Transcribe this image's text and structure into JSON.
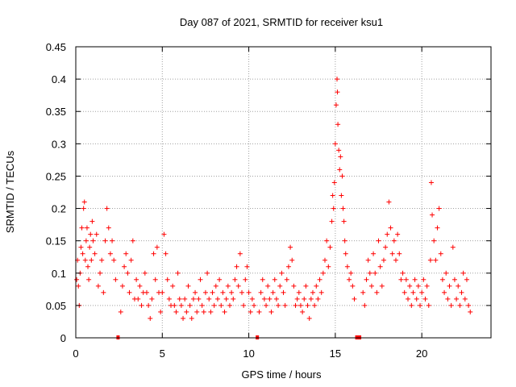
{
  "chart_data": {
    "type": "scatter",
    "title": "Day 087 of 2021, SRMTID for receiver ksu1",
    "xlabel": "GPS time / hours",
    "ylabel": "SRMTID / TECUs",
    "xlim": [
      0,
      24
    ],
    "ylim": [
      0,
      0.45
    ],
    "grid": true,
    "marker": "+",
    "color": "#ff0000",
    "xticks": [
      0,
      5,
      10,
      15,
      20
    ],
    "xtick_labels": [
      "0",
      "5",
      "10",
      "15",
      "20"
    ],
    "yticks": [
      0,
      0.05,
      0.1,
      0.15,
      0.2,
      0.25,
      0.3,
      0.35,
      0.4,
      0.45
    ],
    "ytick_labels": [
      "0",
      "0.05",
      "0.1",
      "0.15",
      "0.2",
      "0.25",
      "0.3",
      "0.35",
      "0.4",
      "0.45"
    ],
    "data_gaps": [
      {
        "x_start": 2.35,
        "x_end": 2.5
      },
      {
        "x_start": 10.4,
        "x_end": 10.55
      },
      {
        "x_start": 16.15,
        "x_end": 16.5
      }
    ],
    "series": [
      {
        "name": "SRMTID",
        "points": [
          [
            0.05,
            0.09
          ],
          [
            0.1,
            0.12
          ],
          [
            0.15,
            0.08
          ],
          [
            0.2,
            0.05
          ],
          [
            0.25,
            0.1
          ],
          [
            0.3,
            0.14
          ],
          [
            0.35,
            0.17
          ],
          [
            0.4,
            0.13
          ],
          [
            0.45,
            0.2
          ],
          [
            0.5,
            0.21
          ],
          [
            0.55,
            0.12
          ],
          [
            0.6,
            0.15
          ],
          [
            0.65,
            0.17
          ],
          [
            0.7,
            0.11
          ],
          [
            0.75,
            0.09
          ],
          [
            0.8,
            0.14
          ],
          [
            0.85,
            0.16
          ],
          [
            0.9,
            0.12
          ],
          [
            0.95,
            0.18
          ],
          [
            1.0,
            0.15
          ],
          [
            1.1,
            0.13
          ],
          [
            1.2,
            0.16
          ],
          [
            1.3,
            0.08
          ],
          [
            1.4,
            0.1
          ],
          [
            1.5,
            0.12
          ],
          [
            1.6,
            0.07
          ],
          [
            1.7,
            0.15
          ],
          [
            1.8,
            0.2
          ],
          [
            1.9,
            0.17
          ],
          [
            2.0,
            0.13
          ],
          [
            2.1,
            0.15
          ],
          [
            2.2,
            0.12
          ],
          [
            2.3,
            0.09
          ],
          [
            2.6,
            0.04
          ],
          [
            2.7,
            0.08
          ],
          [
            2.8,
            0.11
          ],
          [
            2.9,
            0.13
          ],
          [
            3.0,
            0.1
          ],
          [
            3.1,
            0.07
          ],
          [
            3.2,
            0.12
          ],
          [
            3.3,
            0.15
          ],
          [
            3.4,
            0.06
          ],
          [
            3.5,
            0.09
          ],
          [
            3.6,
            0.06
          ],
          [
            3.7,
            0.08
          ],
          [
            3.8,
            0.05
          ],
          [
            3.9,
            0.07
          ],
          [
            4.0,
            0.1
          ],
          [
            4.1,
            0.07
          ],
          [
            4.2,
            0.05
          ],
          [
            4.3,
            0.03
          ],
          [
            4.4,
            0.06
          ],
          [
            4.5,
            0.13
          ],
          [
            4.6,
            0.09
          ],
          [
            4.7,
            0.14
          ],
          [
            4.8,
            0.07
          ],
          [
            4.9,
            0.04
          ],
          [
            5.0,
            0.07
          ],
          [
            5.1,
            0.16
          ],
          [
            5.2,
            0.13
          ],
          [
            5.3,
            0.09
          ],
          [
            5.4,
            0.06
          ],
          [
            5.5,
            0.05
          ],
          [
            5.6,
            0.08
          ],
          [
            5.7,
            0.05
          ],
          [
            5.8,
            0.04
          ],
          [
            5.9,
            0.1
          ],
          [
            6.0,
            0.06
          ],
          [
            6.1,
            0.05
          ],
          [
            6.2,
            0.03
          ],
          [
            6.3,
            0.06
          ],
          [
            6.4,
            0.04
          ],
          [
            6.5,
            0.08
          ],
          [
            6.6,
            0.05
          ],
          [
            6.7,
            0.03
          ],
          [
            6.8,
            0.06
          ],
          [
            6.9,
            0.07
          ],
          [
            7.0,
            0.04
          ],
          [
            7.1,
            0.06
          ],
          [
            7.2,
            0.09
          ],
          [
            7.3,
            0.05
          ],
          [
            7.4,
            0.04
          ],
          [
            7.5,
            0.07
          ],
          [
            7.6,
            0.1
          ],
          [
            7.7,
            0.06
          ],
          [
            7.8,
            0.04
          ],
          [
            7.9,
            0.07
          ],
          [
            8.0,
            0.05
          ],
          [
            8.1,
            0.08
          ],
          [
            8.2,
            0.06
          ],
          [
            8.3,
            0.09
          ],
          [
            8.4,
            0.05
          ],
          [
            8.5,
            0.07
          ],
          [
            8.6,
            0.04
          ],
          [
            8.7,
            0.06
          ],
          [
            8.8,
            0.08
          ],
          [
            8.9,
            0.05
          ],
          [
            9.0,
            0.07
          ],
          [
            9.1,
            0.06
          ],
          [
            9.2,
            0.09
          ],
          [
            9.3,
            0.11
          ],
          [
            9.4,
            0.08
          ],
          [
            9.5,
            0.13
          ],
          [
            9.6,
            0.07
          ],
          [
            9.7,
            0.05
          ],
          [
            9.8,
            0.09
          ],
          [
            9.9,
            0.11
          ],
          [
            10.0,
            0.07
          ],
          [
            10.1,
            0.04
          ],
          [
            10.2,
            0.06
          ],
          [
            10.3,
            0.05
          ],
          [
            10.6,
            0.04
          ],
          [
            10.7,
            0.07
          ],
          [
            10.8,
            0.09
          ],
          [
            10.9,
            0.06
          ],
          [
            11.0,
            0.05
          ],
          [
            11.1,
            0.08
          ],
          [
            11.2,
            0.06
          ],
          [
            11.3,
            0.04
          ],
          [
            11.4,
            0.07
          ],
          [
            11.5,
            0.09
          ],
          [
            11.6,
            0.06
          ],
          [
            11.7,
            0.05
          ],
          [
            11.8,
            0.08
          ],
          [
            11.9,
            0.1
          ],
          [
            12.0,
            0.07
          ],
          [
            12.1,
            0.05
          ],
          [
            12.2,
            0.09
          ],
          [
            12.3,
            0.11
          ],
          [
            12.4,
            0.14
          ],
          [
            12.5,
            0.12
          ],
          [
            12.6,
            0.08
          ],
          [
            12.7,
            0.05
          ],
          [
            12.8,
            0.06
          ],
          [
            12.9,
            0.07
          ],
          [
            13.0,
            0.05
          ],
          [
            13.1,
            0.04
          ],
          [
            13.2,
            0.06
          ],
          [
            13.3,
            0.08
          ],
          [
            13.4,
            0.05
          ],
          [
            13.5,
            0.03
          ],
          [
            13.6,
            0.06
          ],
          [
            13.7,
            0.07
          ],
          [
            13.8,
            0.05
          ],
          [
            13.9,
            0.08
          ],
          [
            14.0,
            0.06
          ],
          [
            14.1,
            0.09
          ],
          [
            14.2,
            0.07
          ],
          [
            14.3,
            0.1
          ],
          [
            14.4,
            0.12
          ],
          [
            14.5,
            0.15
          ],
          [
            14.6,
            0.11
          ],
          [
            14.7,
            0.14
          ],
          [
            14.8,
            0.18
          ],
          [
            14.85,
            0.22
          ],
          [
            14.9,
            0.2
          ],
          [
            14.95,
            0.24
          ],
          [
            15.0,
            0.3
          ],
          [
            15.05,
            0.36
          ],
          [
            15.1,
            0.4
          ],
          [
            15.12,
            0.38
          ],
          [
            15.15,
            0.33
          ],
          [
            15.2,
            0.29
          ],
          [
            15.25,
            0.26
          ],
          [
            15.3,
            0.28
          ],
          [
            15.35,
            0.22
          ],
          [
            15.4,
            0.25
          ],
          [
            15.45,
            0.2
          ],
          [
            15.5,
            0.18
          ],
          [
            15.55,
            0.15
          ],
          [
            15.6,
            0.13
          ],
          [
            15.7,
            0.11
          ],
          [
            15.8,
            0.09
          ],
          [
            15.9,
            0.1
          ],
          [
            16.0,
            0.08
          ],
          [
            16.1,
            0.06
          ],
          [
            16.6,
            0.07
          ],
          [
            16.7,
            0.05
          ],
          [
            16.8,
            0.09
          ],
          [
            16.9,
            0.12
          ],
          [
            17.0,
            0.1
          ],
          [
            17.1,
            0.08
          ],
          [
            17.2,
            0.13
          ],
          [
            17.3,
            0.1
          ],
          [
            17.4,
            0.07
          ],
          [
            17.5,
            0.15
          ],
          [
            17.6,
            0.11
          ],
          [
            17.7,
            0.08
          ],
          [
            17.8,
            0.12
          ],
          [
            17.9,
            0.14
          ],
          [
            18.0,
            0.16
          ],
          [
            18.1,
            0.21
          ],
          [
            18.2,
            0.17
          ],
          [
            18.3,
            0.13
          ],
          [
            18.4,
            0.15
          ],
          [
            18.5,
            0.12
          ],
          [
            18.6,
            0.16
          ],
          [
            18.7,
            0.13
          ],
          [
            18.8,
            0.09
          ],
          [
            18.9,
            0.1
          ],
          [
            19.0,
            0.07
          ],
          [
            19.1,
            0.09
          ],
          [
            19.2,
            0.06
          ],
          [
            19.3,
            0.08
          ],
          [
            19.4,
            0.05
          ],
          [
            19.5,
            0.07
          ],
          [
            19.6,
            0.09
          ],
          [
            19.7,
            0.06
          ],
          [
            19.8,
            0.08
          ],
          [
            19.9,
            0.05
          ],
          [
            20.0,
            0.07
          ],
          [
            20.1,
            0.09
          ],
          [
            20.2,
            0.06
          ],
          [
            20.3,
            0.08
          ],
          [
            20.4,
            0.05
          ],
          [
            20.5,
            0.12
          ],
          [
            20.55,
            0.24
          ],
          [
            20.6,
            0.19
          ],
          [
            20.7,
            0.15
          ],
          [
            20.8,
            0.12
          ],
          [
            20.9,
            0.17
          ],
          [
            21.0,
            0.2
          ],
          [
            21.1,
            0.13
          ],
          [
            21.2,
            0.09
          ],
          [
            21.3,
            0.07
          ],
          [
            21.4,
            0.1
          ],
          [
            21.5,
            0.06
          ],
          [
            21.6,
            0.08
          ],
          [
            21.7,
            0.05
          ],
          [
            21.8,
            0.14
          ],
          [
            21.9,
            0.09
          ],
          [
            22.0,
            0.06
          ],
          [
            22.1,
            0.08
          ],
          [
            22.2,
            0.05
          ],
          [
            22.3,
            0.07
          ],
          [
            22.4,
            0.1
          ],
          [
            22.5,
            0.06
          ],
          [
            22.6,
            0.09
          ],
          [
            22.7,
            0.05
          ],
          [
            22.8,
            0.04
          ]
        ]
      }
    ]
  }
}
